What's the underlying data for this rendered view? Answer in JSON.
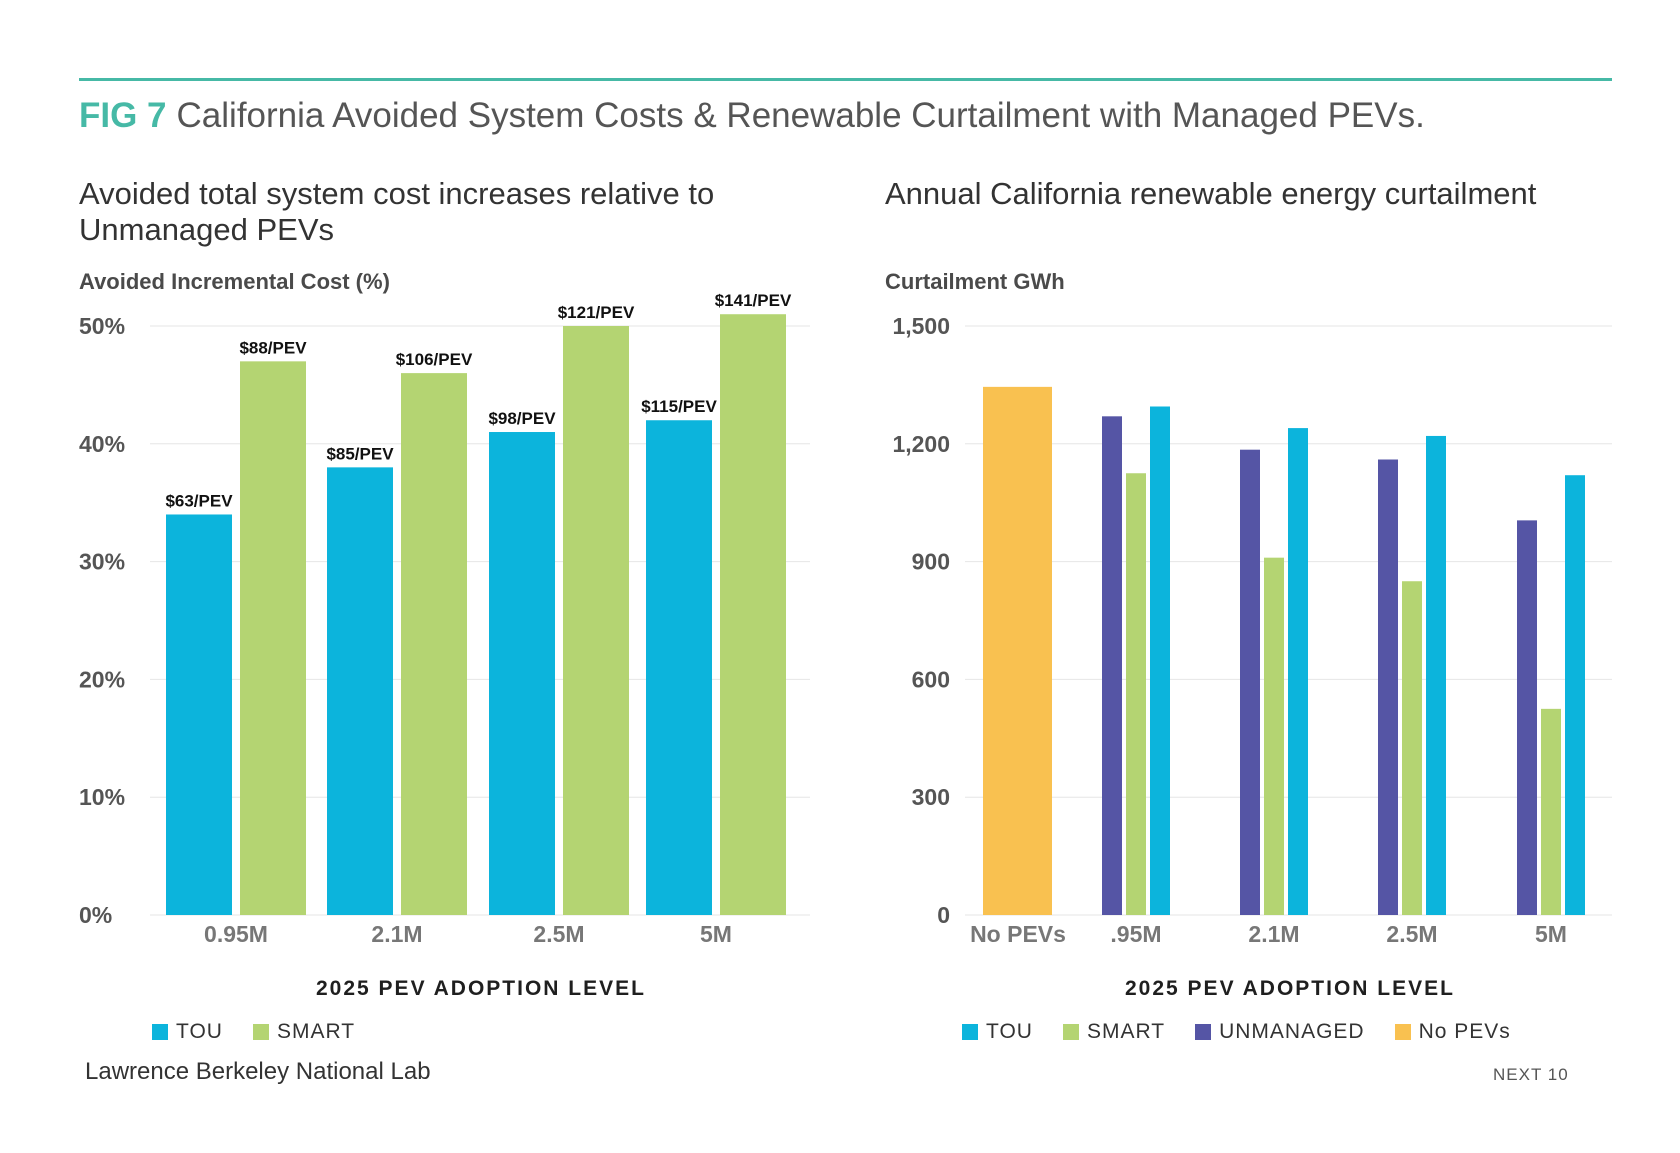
{
  "header": {
    "fig_number": "FIG 7",
    "title": "California Avoided System Costs & Renewable Curtailment with Managed PEVs."
  },
  "colors": {
    "accent": "#46b9a6",
    "tou": "#0cb4dc",
    "smart": "#b4d472",
    "unmanaged": "#5555a5",
    "no_pevs": "#f9c150",
    "grid": "#e6e6e6"
  },
  "chart_data": [
    {
      "type": "bar",
      "title": "Avoided total system cost increases relative to Unmanaged PEVs",
      "ylabel": "Avoided Incremental Cost (%)",
      "xlabel": "2025 PEV ADOPTION LEVEL",
      "categories": [
        "0.95M",
        "2.1M",
        "2.5M",
        "5M"
      ],
      "yticks": [
        "0%",
        "10%",
        "20%",
        "30%",
        "40%",
        "50%"
      ],
      "ylim": [
        0,
        50
      ],
      "series": [
        {
          "name": "TOU",
          "values": [
            34,
            38,
            41,
            42
          ],
          "labels": [
            "$63/PEV",
            "$85/PEV",
            "$98/PEV",
            "$115/PEV"
          ]
        },
        {
          "name": "SMART",
          "values": [
            47,
            46,
            50,
            51
          ],
          "labels": [
            "$88/PEV",
            "$106/PEV",
            "$121/PEV",
            "$141/PEV"
          ]
        }
      ],
      "legend": [
        "TOU",
        "SMART"
      ],
      "legend_position": "bottom-left",
      "grid": true
    },
    {
      "type": "bar",
      "title": "Annual California renewable energy curtailment",
      "ylabel": "Curtailment GWh",
      "xlabel": "2025 PEV ADOPTION LEVEL",
      "categories": [
        "No PEVs",
        ".95M",
        "2.1M",
        "2.5M",
        "5M"
      ],
      "yticks": [
        "0",
        "300",
        "600",
        "900",
        "1,200",
        "1,500"
      ],
      "ylim": [
        0,
        1500
      ],
      "series": [
        {
          "name": "UNMANAGED",
          "values": [
            0,
            1270,
            1185,
            1160,
            1005
          ]
        },
        {
          "name": "SMART",
          "values": [
            0,
            1125,
            910,
            850,
            525
          ]
        },
        {
          "name": "TOU",
          "values": [
            0,
            1295,
            1240,
            1220,
            1120
          ]
        },
        {
          "name": "No PEVs",
          "values": [
            1345,
            0,
            0,
            0,
            0
          ]
        }
      ],
      "legend": [
        "TOU",
        "SMART",
        "UNMANAGED",
        "No PEVs"
      ],
      "legend_position": "bottom",
      "grid": true
    }
  ],
  "footer": {
    "source": "Lawrence Berkeley National Lab",
    "page": "NEXT 10"
  }
}
